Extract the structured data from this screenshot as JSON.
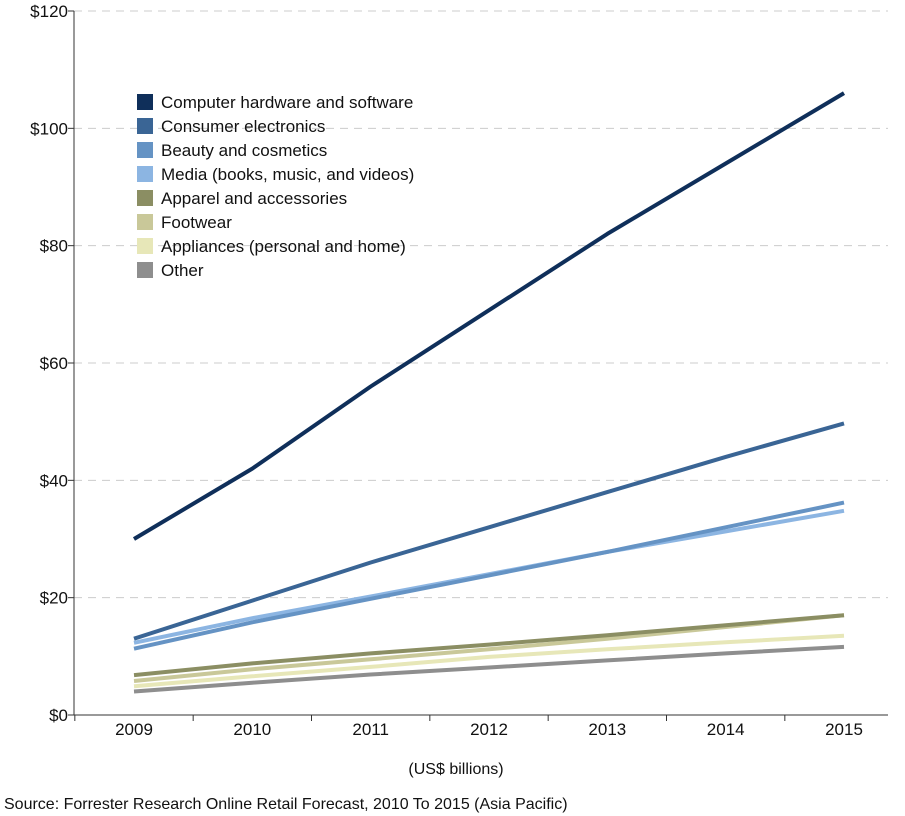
{
  "chart_data": {
    "type": "line",
    "title": "",
    "xlabel": "(US$ billions)",
    "ylabel": "",
    "source": "Source:  Forrester Research Online Retail Forecast, 2010 To 2015 (Asia Pacific)",
    "ylim": [
      0,
      120
    ],
    "yticks": [
      0,
      20,
      40,
      60,
      80,
      100,
      120
    ],
    "ytick_labels": [
      "$0",
      "$20",
      "$40",
      "$60",
      "$80",
      "$100",
      "$120"
    ],
    "grid": true,
    "legend_position": "top-left",
    "categories": [
      "2009",
      "2010",
      "2011",
      "2012",
      "2013",
      "2014",
      "2015"
    ],
    "series": [
      {
        "name": "Computer hardware and software",
        "color": "#0f2f5a",
        "values": [
          30,
          42,
          56,
          69,
          82,
          94,
          106
        ]
      },
      {
        "name": "Consumer electronics",
        "color": "#3a6595",
        "values": [
          13,
          19.5,
          26,
          32,
          38,
          44,
          49.7
        ]
      },
      {
        "name": "Beauty and cosmetics",
        "color": "#6593c4",
        "values": [
          11.3,
          15.8,
          19.8,
          23.8,
          27.8,
          32,
          36.2
        ]
      },
      {
        "name": "Media (books, music, and videos)",
        "color": "#8cb5e2",
        "values": [
          12.3,
          16.5,
          20.2,
          24,
          27.8,
          31.3,
          34.8
        ]
      },
      {
        "name": "Apparel and accessories",
        "color": "#8b8e63",
        "values": [
          6.8,
          8.8,
          10.5,
          12,
          13.6,
          15.3,
          17
        ]
      },
      {
        "name": "Footwear",
        "color": "#c9c899",
        "values": [
          5.8,
          7.8,
          9.5,
          11.2,
          13,
          15,
          17
        ]
      },
      {
        "name": "Appliances (personal and home)",
        "color": "#e7e7b8",
        "values": [
          4.9,
          6.6,
          8.2,
          9.9,
          11.2,
          12.4,
          13.5
        ]
      },
      {
        "name": "Other",
        "color": "#8e8e8e",
        "values": [
          4,
          5.5,
          6.9,
          8.1,
          9.3,
          10.5,
          11.6
        ]
      }
    ]
  }
}
